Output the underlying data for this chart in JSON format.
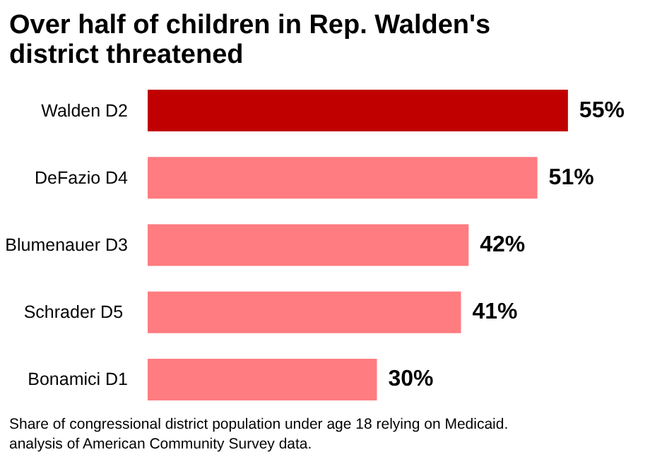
{
  "chart_data": {
    "type": "bar",
    "orientation": "horizontal",
    "title": "Over half of children in Rep. Walden's district threatened",
    "categories": [
      "Walden D2",
      "DeFazio D4",
      "Blumenauer D3",
      "Schrader  D5",
      "Bonamici D1"
    ],
    "values": [
      55,
      51,
      42,
      41,
      30
    ],
    "colors": [
      "#c00000",
      "#ff7c80",
      "#ff7c80",
      "#ff7c80",
      "#ff7c80"
    ],
    "value_labels": [
      "55%",
      "51%",
      "42%",
      "41%",
      "30%"
    ],
    "annotations": [
      "Share of congressional district population under age 18 relying on Medicaid.",
      "analysis of American Community Survey data."
    ],
    "grid": false
  }
}
